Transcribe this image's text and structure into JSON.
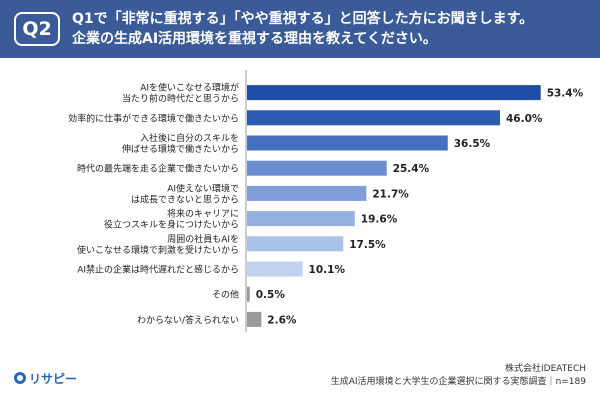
{
  "header": {
    "badge": "Q2",
    "title_line1": "Q1で「非常に重視する」「やや重視する」と回答した方にお聞きします。",
    "title_line2": "企業の生成AI活用環境を重視する理由を教えてください。"
  },
  "chart_data": {
    "type": "bar",
    "orientation": "horizontal",
    "categories": [
      [
        "AIを使いこなせる環境が",
        "当たり前の時代だと思うから"
      ],
      [
        "効率的に仕事ができる環境で働きたいから"
      ],
      [
        "入社後に自分のスキルを",
        "伸ばせる環境で働きたいから"
      ],
      [
        "時代の最先端を走る企業で働きたいから"
      ],
      [
        "AI使えない環境で",
        "は成長できないと思うから"
      ],
      [
        "将来のキャリアに",
        "役立つスキルを身につけたいから"
      ],
      [
        "周囲の社員もAIを",
        "使いこなせる環境で刺激を受けたいから"
      ],
      [
        "AI禁止の企業は時代遅れだと感じるから"
      ],
      [
        "その他"
      ],
      [
        "わからない/答えられない"
      ]
    ],
    "values": [
      53.4,
      46.0,
      36.5,
      25.4,
      21.7,
      19.6,
      17.5,
      10.1,
      0.5,
      2.6
    ],
    "value_labels": [
      "53.4%",
      "46.0%",
      "36.5%",
      "25.4%",
      "21.7%",
      "19.6%",
      "17.5%",
      "10.1%",
      "0.5%",
      "2.6%"
    ],
    "bar_colors": [
      "#1f4ea6",
      "#2b5cb2",
      "#4470bf",
      "#6a8ed0",
      "#7f9ed8",
      "#95b0e0",
      "#abc2e8",
      "#c0d2ef",
      "#9a9a9a",
      "#9a9a9a"
    ],
    "xlim": [
      0,
      60
    ],
    "grid": false,
    "legend": "none"
  },
  "footer": {
    "logo": "リサピー",
    "source_line1": "株式会社IDEATECH",
    "source_line2": "生成AI活用環境と大学生の企業選択に関する実態調査｜n=189"
  },
  "colors": {
    "header_bg": "#3a5a98",
    "axis": "#999999",
    "text": "#222222"
  }
}
